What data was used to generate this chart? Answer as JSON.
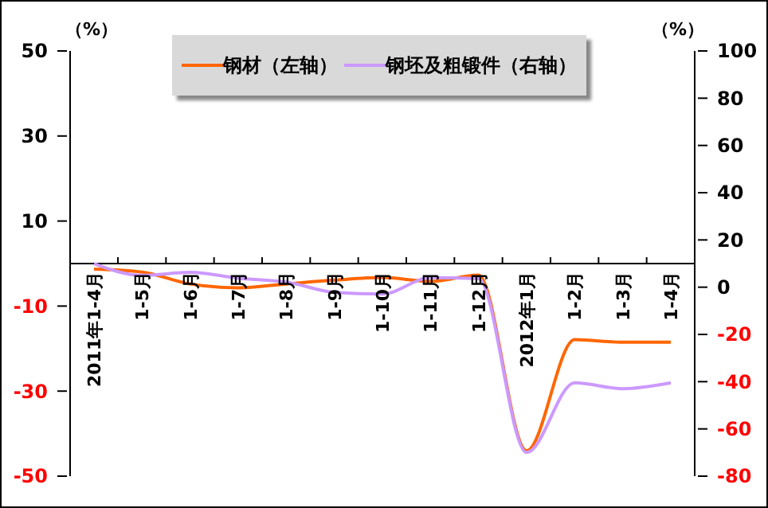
{
  "chart_data": {
    "type": "line",
    "ylabel": "（%）",
    "y2label": "（%）",
    "categories": [
      "2011年1-4月",
      "1-5月",
      "1-6月",
      "1-7月",
      "1-8月",
      "1-9月",
      "1-10月",
      "1-11月",
      "1-12月",
      "2012年1月",
      "1-2月",
      "1-3月",
      "1-4月"
    ],
    "series": [
      {
        "name": "钢材（左轴）",
        "color": "#ff6600",
        "values": [
          -1.3,
          -2,
          -4.8,
          -5.7,
          -4.8,
          -3.9,
          -3.3,
          -4.2,
          -2.7,
          -44,
          -17.9,
          -18.5,
          -18.5
        ]
      },
      {
        "name": "钢坯及粗锻件（右轴）",
        "color": "#cc99ff",
        "axis": "y2",
        "values": [
          10,
          5,
          6.3,
          3.8,
          2.2,
          -2.2,
          -2.9,
          4,
          3.6,
          -70,
          -40.5,
          -43,
          -40.5
        ]
      }
    ],
    "ylim": [
      -50,
      50
    ],
    "yticks": [
      -50,
      -30,
      -10,
      10,
      30,
      50
    ],
    "y2lim": [
      -80,
      100
    ],
    "y2ticks": [
      -80,
      -60,
      -40,
      -20,
      0,
      20,
      40,
      60,
      80,
      100
    ],
    "legend": "top",
    "marker": "none",
    "line_style": "solid"
  }
}
